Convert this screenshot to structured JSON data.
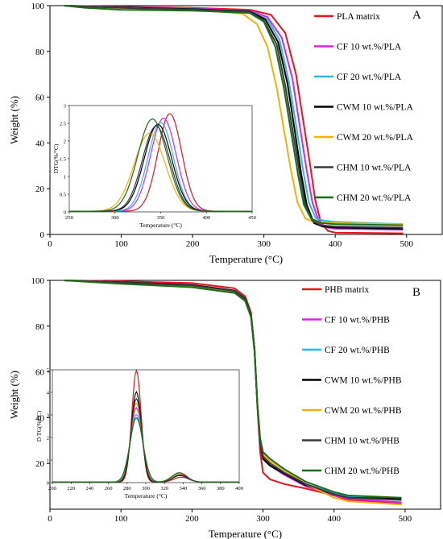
{
  "chart_data": [
    {
      "type": "line",
      "panel_label": "A",
      "xlabel": "Temperature (°C)",
      "ylabel": "Weight (%)",
      "xlim": [
        0,
        550
      ],
      "ylim": [
        0,
        100
      ],
      "xticks": [
        0,
        100,
        200,
        300,
        400,
        500
      ],
      "yticks": [
        0,
        20,
        40,
        60,
        80,
        100
      ],
      "legend_position": "right",
      "series": [
        {
          "name": "PLA matrix",
          "color": "#e8141c",
          "x": [
            20,
            100,
            200,
            280,
            310,
            330,
            345,
            355,
            365,
            372,
            380,
            390,
            400,
            495
          ],
          "y": [
            100,
            99.5,
            99,
            98.2,
            96,
            88,
            70,
            50,
            30,
            15,
            5,
            1.5,
            0.8,
            0.5
          ]
        },
        {
          "name": "CF 10 wt.%/PLA",
          "color": "#e020e8",
          "x": [
            20,
            100,
            200,
            280,
            305,
            325,
            340,
            350,
            360,
            368,
            378,
            390,
            400,
            495
          ],
          "y": [
            100,
            99.4,
            98.8,
            97.8,
            95,
            86,
            68,
            48,
            28,
            14,
            5,
            3,
            2.5,
            2
          ]
        },
        {
          "name": "CF 20 wt.%/PLA",
          "color": "#27b8f0",
          "x": [
            20,
            100,
            200,
            280,
            305,
            322,
            335,
            345,
            355,
            363,
            373,
            385,
            400,
            495
          ],
          "y": [
            100,
            99.3,
            98.6,
            97.5,
            94,
            85,
            67,
            48,
            28,
            14,
            7,
            6,
            5.5,
            4.5
          ]
        },
        {
          "name": "CWM 10 wt.%/PLA",
          "color": "#000000",
          "x": [
            20,
            100,
            200,
            280,
            302,
            320,
            333,
            343,
            352,
            360,
            370,
            382,
            400,
            495
          ],
          "y": [
            100,
            99.2,
            98.5,
            97.5,
            94,
            84,
            66,
            46,
            27,
            13,
            5,
            3.5,
            3,
            2.5
          ]
        },
        {
          "name": "CWM 20 wt.%/PLA",
          "color": "#f0b400",
          "x": [
            20,
            100,
            200,
            270,
            290,
            305,
            318,
            328,
            338,
            347,
            358,
            370,
            400,
            495
          ],
          "y": [
            100,
            99,
            98.2,
            96.5,
            92,
            82,
            64,
            46,
            28,
            14,
            7,
            5.5,
            5,
            4.5
          ]
        },
        {
          "name": "CHM 10 wt.%/PLA",
          "color": "#3a3a3a",
          "x": [
            20,
            100,
            200,
            280,
            300,
            318,
            330,
            340,
            350,
            358,
            368,
            380,
            400,
            495
          ],
          "y": [
            100,
            99,
            98.3,
            97.3,
            93.5,
            83,
            65,
            46,
            27,
            13,
            6,
            4,
            3.5,
            3
          ]
        },
        {
          "name": "CHM 20 wt.%/PLA",
          "color": "#1a6e1a",
          "x": [
            20,
            50,
            100,
            200,
            280,
            300,
            316,
            328,
            338,
            348,
            356,
            366,
            380,
            400,
            495
          ],
          "y": [
            100,
            99,
            98.2,
            97.8,
            96.8,
            93,
            82,
            64,
            45,
            26,
            13,
            7,
            5,
            4.5,
            4
          ]
        }
      ],
      "inset": {
        "ylabel": "DTG(%/°C)",
        "xlabel": "Temperature (°C)",
        "xlim": [
          250,
          450
        ],
        "ylim": [
          0,
          3
        ],
        "xticks": [
          250,
          300,
          350,
          400,
          450
        ],
        "yticks": [
          0,
          0.5,
          1,
          1.5,
          2,
          2.5,
          3
        ],
        "ytick_labels": [
          "0",
          "0.5",
          "1",
          "1.5",
          "2",
          "2.5",
          "3"
        ],
        "peaks": [
          {
            "color": "#e8141c",
            "center": 360,
            "height": 2.75,
            "width": 13
          },
          {
            "color": "#e020e8",
            "center": 353,
            "height": 2.62,
            "width": 14
          },
          {
            "color": "#27b8f0",
            "center": 350,
            "height": 2.5,
            "width": 14
          },
          {
            "color": "#000000",
            "center": 347,
            "height": 2.45,
            "width": 15
          },
          {
            "color": "#f0b400",
            "center": 338,
            "height": 2.2,
            "width": 17
          },
          {
            "color": "#3a3a3a",
            "center": 345,
            "height": 2.4,
            "width": 15
          },
          {
            "color": "#1a6e1a",
            "center": 341,
            "height": 2.6,
            "width": 16
          }
        ]
      }
    },
    {
      "type": "line",
      "panel_label": "B",
      "xlabel": "Temperature (°C)",
      "ylabel": "Weight (%)",
      "xlim": [
        0,
        550
      ],
      "ylim": [
        0,
        100
      ],
      "xticks": [
        0,
        100,
        200,
        300,
        400,
        500
      ],
      "yticks": [
        20,
        40,
        60,
        80,
        100
      ],
      "legend_position": "right",
      "series": [
        {
          "name": "PHB matrix",
          "color": "#e8141c",
          "x": [
            20,
            100,
            200,
            260,
            275,
            283,
            288,
            292,
            296,
            300,
            310,
            330,
            360,
            400,
            420,
            495
          ],
          "y": [
            100,
            99.6,
            98.8,
            96.5,
            93,
            86,
            70,
            45,
            25,
            16,
            13,
            11,
            9,
            6,
            4,
            2.5
          ]
        },
        {
          "name": "CF 10 wt.%/PHB",
          "color": "#e020e8",
          "x": [
            20,
            100,
            200,
            260,
            275,
            283,
            288,
            292,
            296,
            300,
            310,
            330,
            360,
            400,
            420,
            495
          ],
          "y": [
            100,
            99.3,
            98,
            95.5,
            92,
            85,
            70,
            46,
            28,
            22,
            19,
            15,
            10,
            6,
            4.5,
            3
          ]
        },
        {
          "name": "CF 20 wt.%/PHB",
          "color": "#27b8f0",
          "x": [
            20,
            100,
            200,
            260,
            275,
            283,
            288,
            292,
            296,
            300,
            310,
            330,
            360,
            400,
            420,
            495
          ],
          "y": [
            100,
            98.8,
            97,
            94.5,
            91,
            84,
            69,
            46,
            29,
            23,
            20,
            16,
            11,
            7,
            5.5,
            4.5
          ]
        },
        {
          "name": "CWM 10 wt.%/PHB",
          "color": "#000000",
          "x": [
            20,
            100,
            200,
            260,
            275,
            283,
            288,
            292,
            296,
            300,
            310,
            330,
            360,
            400,
            420,
            495
          ],
          "y": [
            100,
            99.2,
            98,
            95.5,
            92,
            85,
            70,
            46,
            29,
            22,
            19,
            15.5,
            10.5,
            6.5,
            5,
            4.5
          ]
        },
        {
          "name": "CWM 20 wt.%/PHB",
          "color": "#f0b400",
          "x": [
            20,
            100,
            200,
            260,
            275,
            283,
            288,
            292,
            296,
            300,
            310,
            330,
            360,
            400,
            420,
            495
          ],
          "y": [
            100,
            99,
            97.5,
            95,
            91.5,
            84.5,
            69,
            46,
            30,
            24,
            21,
            17,
            11,
            5,
            3.5,
            2
          ]
        },
        {
          "name": "CHM 10 wt.%/PHB",
          "color": "#3a3a3a",
          "x": [
            20,
            100,
            200,
            260,
            275,
            283,
            288,
            292,
            296,
            300,
            310,
            330,
            360,
            400,
            420,
            495
          ],
          "y": [
            100,
            99.1,
            97.8,
            95.3,
            91.8,
            84.8,
            69.5,
            46,
            29.5,
            23,
            20,
            16,
            11,
            6.5,
            5,
            4
          ]
        },
        {
          "name": "CHM 20 wt.%/PHB",
          "color": "#1a6e1a",
          "x": [
            20,
            100,
            200,
            260,
            275,
            283,
            288,
            292,
            296,
            300,
            310,
            330,
            360,
            400,
            420,
            495
          ],
          "y": [
            100,
            98.5,
            97,
            94.5,
            91,
            84,
            69,
            46,
            31,
            25,
            22,
            17.5,
            12,
            7.5,
            6,
            5
          ]
        }
      ],
      "inset": {
        "ylabel": "D TG(%/°C)",
        "xlabel": "Temperature (°C)",
        "xlim": [
          200,
          400
        ],
        "ylim": [
          0,
          5
        ],
        "xticks": [
          200,
          220,
          240,
          260,
          280,
          300,
          320,
          340,
          360,
          380,
          400
        ],
        "yticks": [
          0,
          1,
          2,
          3,
          4,
          5
        ],
        "ytick_labels": [
          "0",
          "1",
          "2",
          "3",
          "4",
          "5"
        ],
        "peaks": [
          {
            "color": "#e8141c",
            "center": 290,
            "height": 4.95,
            "width": 5,
            "bump_center": 338,
            "bump_height": 0.22
          },
          {
            "color": "#e020e8",
            "center": 290,
            "height": 3.3,
            "width": 6,
            "bump_center": 336,
            "bump_height": 0.3
          },
          {
            "color": "#27b8f0",
            "center": 290,
            "height": 3.0,
            "width": 6.5,
            "bump_center": 336,
            "bump_height": 0.35
          },
          {
            "color": "#000000",
            "center": 290,
            "height": 4.0,
            "width": 5.5,
            "bump_center": 337,
            "bump_height": 0.3
          },
          {
            "color": "#f0b400",
            "center": 290,
            "height": 3.5,
            "width": 6,
            "bump_center": 336,
            "bump_height": 0.38
          },
          {
            "color": "#3a3a3a",
            "center": 290,
            "height": 3.7,
            "width": 5.8,
            "bump_center": 337,
            "bump_height": 0.32
          },
          {
            "color": "#1a6e1a",
            "center": 290,
            "height": 2.85,
            "width": 7,
            "bump_center": 336,
            "bump_height": 0.42
          }
        ]
      }
    }
  ]
}
